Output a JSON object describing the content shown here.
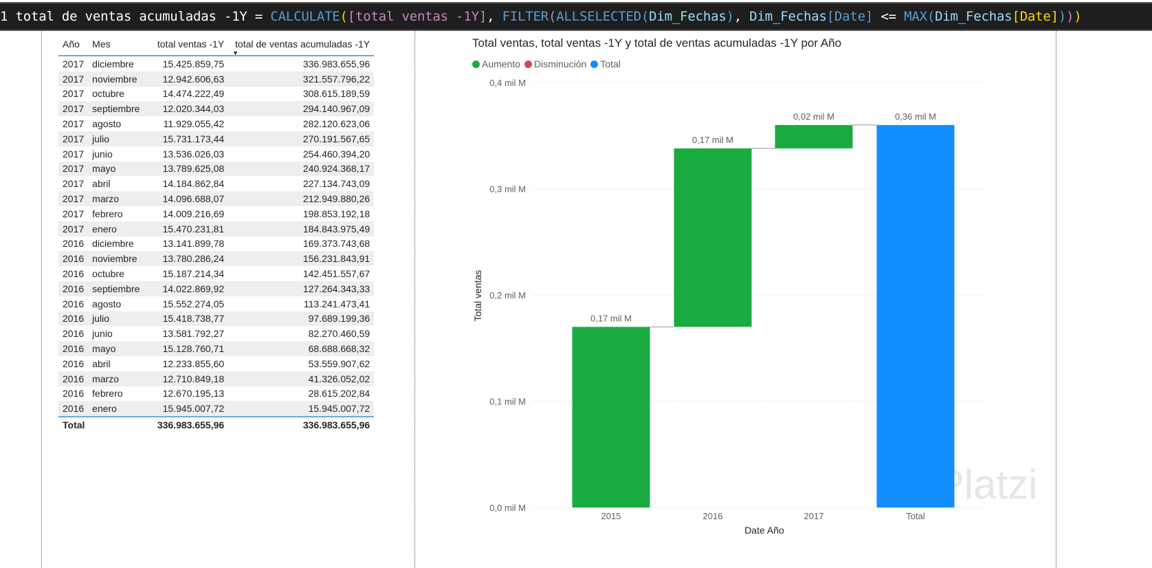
{
  "formula": {
    "line": "1",
    "name": "total de ventas acumuladas -1Y",
    "eq": " = ",
    "calc": "CALCULATE",
    "col": "[total ventas -1Y]",
    "filter": "FILTER",
    "allsel": "ALLSELECTED",
    "table": "Dim_Fechas",
    "colref": "Dim_Fechas",
    "date": "[Date]",
    "op": " <= ",
    "max": "MAX",
    "table2": "Dim_Fechas",
    "date2": "[Date]"
  },
  "table": {
    "headers": [
      "Año",
      "Mes",
      "total ventas -1Y",
      "total de ventas acumuladas -1Y"
    ],
    "rows": [
      [
        "2017",
        "diciembre",
        "15.425.859,75",
        "336.983.655,96"
      ],
      [
        "2017",
        "noviembre",
        "12.942.606,63",
        "321.557.796,22"
      ],
      [
        "2017",
        "octubre",
        "14.474.222,49",
        "308.615.189,59"
      ],
      [
        "2017",
        "septiembre",
        "12.020.344,03",
        "294.140.967,09"
      ],
      [
        "2017",
        "agosto",
        "11.929.055,42",
        "282.120.623,06"
      ],
      [
        "2017",
        "julio",
        "15.731.173,44",
        "270.191.567,65"
      ],
      [
        "2017",
        "junio",
        "13.536.026,03",
        "254.460.394,20"
      ],
      [
        "2017",
        "mayo",
        "13.789.625,08",
        "240.924.368,17"
      ],
      [
        "2017",
        "abril",
        "14.184.862,84",
        "227.134.743,09"
      ],
      [
        "2017",
        "marzo",
        "14.096.688,07",
        "212.949.880,26"
      ],
      [
        "2017",
        "febrero",
        "14.009.216,69",
        "198.853.192,18"
      ],
      [
        "2017",
        "enero",
        "15.470.231,81",
        "184.843.975,49"
      ],
      [
        "2016",
        "diciembre",
        "13.141.899,78",
        "169.373.743,68"
      ],
      [
        "2016",
        "noviembre",
        "13.780.286,24",
        "156.231.843,91"
      ],
      [
        "2016",
        "octubre",
        "15.187.214,34",
        "142.451.557,67"
      ],
      [
        "2016",
        "septiembre",
        "14.022.869,92",
        "127.264.343,33"
      ],
      [
        "2016",
        "agosto",
        "15.552.274,05",
        "113.241.473,41"
      ],
      [
        "2016",
        "julio",
        "15.418.738,77",
        "97.689.199,36"
      ],
      [
        "2016",
        "junio",
        "13.581.792,27",
        "82.270.460,59"
      ],
      [
        "2016",
        "mayo",
        "15.128.760,71",
        "68.688.668,32"
      ],
      [
        "2016",
        "abril",
        "12.233.855,60",
        "53.559.907,62"
      ],
      [
        "2016",
        "marzo",
        "12.710.849,18",
        "41.326.052,02"
      ],
      [
        "2016",
        "febrero",
        "12.670.195,13",
        "28.615.202,84"
      ],
      [
        "2016",
        "enero",
        "15.945.007,72",
        "15.945.007,72"
      ]
    ],
    "total": [
      "Total",
      "336.983.655,96",
      "336.983.655,96"
    ]
  },
  "chart_data": {
    "type": "waterfall",
    "title": "Total ventas, total ventas -1Y y total de ventas acumuladas -1Y por Año",
    "legend": [
      {
        "name": "Aumento",
        "color": "#1aab40"
      },
      {
        "name": "Disminución",
        "color": "#d64554"
      },
      {
        "name": "Total",
        "color": "#118dff"
      }
    ],
    "legend_position": "top-left",
    "xlabel": "Date Año",
    "ylabel": "Total ventas",
    "ylim": [
      0,
      0.4
    ],
    "yticks": [
      "0,0 mil M",
      "0,1 mil M",
      "0,2 mil M",
      "0,3 mil M",
      "0,4 mil M"
    ],
    "categories": [
      "2015",
      "2016",
      "2017",
      "Total"
    ],
    "values": [
      0.17,
      0.168,
      0.022,
      0.36
    ],
    "kinds": [
      "increase",
      "increase",
      "increase",
      "total"
    ],
    "labels": [
      "0,17 mil M",
      "0,17 mil M",
      "0,02 mil M",
      "0,36 mil M"
    ],
    "grid": true
  },
  "watermark": "Platzi"
}
